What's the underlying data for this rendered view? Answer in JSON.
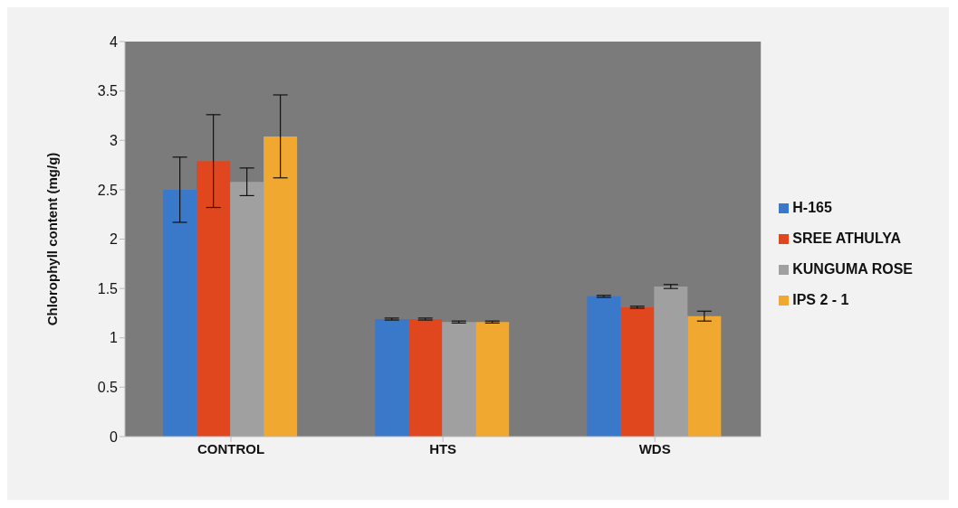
{
  "chart_data": {
    "type": "bar",
    "ylabel": "Chlorophyll content (mg/g)",
    "categories": [
      "CONTROL",
      "HTS",
      "WDS"
    ],
    "series": [
      {
        "name": "H-165",
        "color": "#3a78c9",
        "values": [
          2.5,
          1.19,
          1.42
        ],
        "errors": [
          0.33,
          0.01,
          0.01
        ]
      },
      {
        "name": "SREE ATHULYA",
        "color": "#e0471e",
        "values": [
          2.79,
          1.19,
          1.31
        ],
        "errors": [
          0.47,
          0.01,
          0.01
        ]
      },
      {
        "name": "KUNGUMA ROSE",
        "color": "#a0a0a0",
        "values": [
          2.58,
          1.16,
          1.52
        ],
        "errors": [
          0.14,
          0.01,
          0.02
        ]
      },
      {
        "name": "IPS 2 - 1",
        "color": "#f0a830",
        "values": [
          3.04,
          1.16,
          1.22
        ],
        "errors": [
          0.42,
          0.01,
          0.05
        ]
      }
    ],
    "ylim": [
      0,
      4
    ],
    "yticks": [
      0,
      0.5,
      1,
      1.5,
      2,
      2.5,
      3,
      3.5,
      4
    ],
    "grid": false,
    "legend": "right"
  }
}
